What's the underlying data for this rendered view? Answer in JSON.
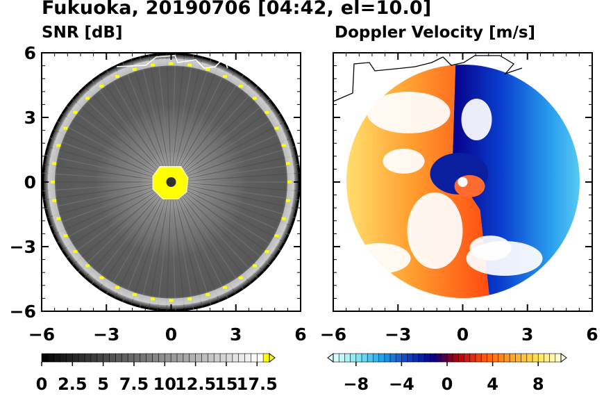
{
  "header": {
    "title": "Fukuoka, 20190706 [04:42, el=10.0]",
    "left_subtitle": "SNR [dB]",
    "right_subtitle": "Doppler Velocity [m/s]"
  },
  "chart_data": [
    {
      "type": "heatmap",
      "title": "SNR [dB]",
      "projection": "radar PPI, circular coverage",
      "x_ticks": [
        "−6",
        "−3",
        "0",
        "3",
        "6"
      ],
      "y_ticks": [
        "6",
        "3",
        "0",
        "−3",
        "−6"
      ],
      "xlim": [
        -6,
        6
      ],
      "ylim": [
        -6,
        6
      ],
      "coverage_radius": 6,
      "colorbar": {
        "min": 0,
        "max": 18.5,
        "extend": "max",
        "ticks": [
          0,
          2.5,
          5,
          7.5,
          10,
          12.5,
          15,
          17.5
        ],
        "tick_labels": [
          "0",
          "2.5",
          "5",
          "7.5",
          "10",
          "12.5",
          "15",
          "17.5"
        ],
        "colors": [
          "#000000",
          "#ffffff",
          "#ffff00"
        ]
      }
    },
    {
      "type": "heatmap",
      "title": "Doppler Velocity [m/s]",
      "projection": "radar PPI, circular coverage",
      "x_ticks": [
        "−6",
        "−3",
        "0",
        "3",
        "6"
      ],
      "y_ticks": [
        "6",
        "3",
        "0",
        "−3",
        "−6"
      ],
      "xlim": [
        -6,
        6
      ],
      "ylim": [
        -6,
        6
      ],
      "colorbar": {
        "min": -10,
        "max": 10,
        "extend": "both",
        "ticks": [
          -8,
          -4,
          0,
          4,
          8
        ],
        "tick_labels": [
          "−8",
          "−4",
          "0",
          "4",
          "8"
        ],
        "colors": [
          "#e0ffff",
          "#7de8f0",
          "#1f9be6",
          "#0a3ec8",
          "#07007a",
          "#c40000",
          "#ff5a10",
          "#ffa020",
          "#ffe050",
          "#ffffe0"
        ]
      }
    }
  ]
}
